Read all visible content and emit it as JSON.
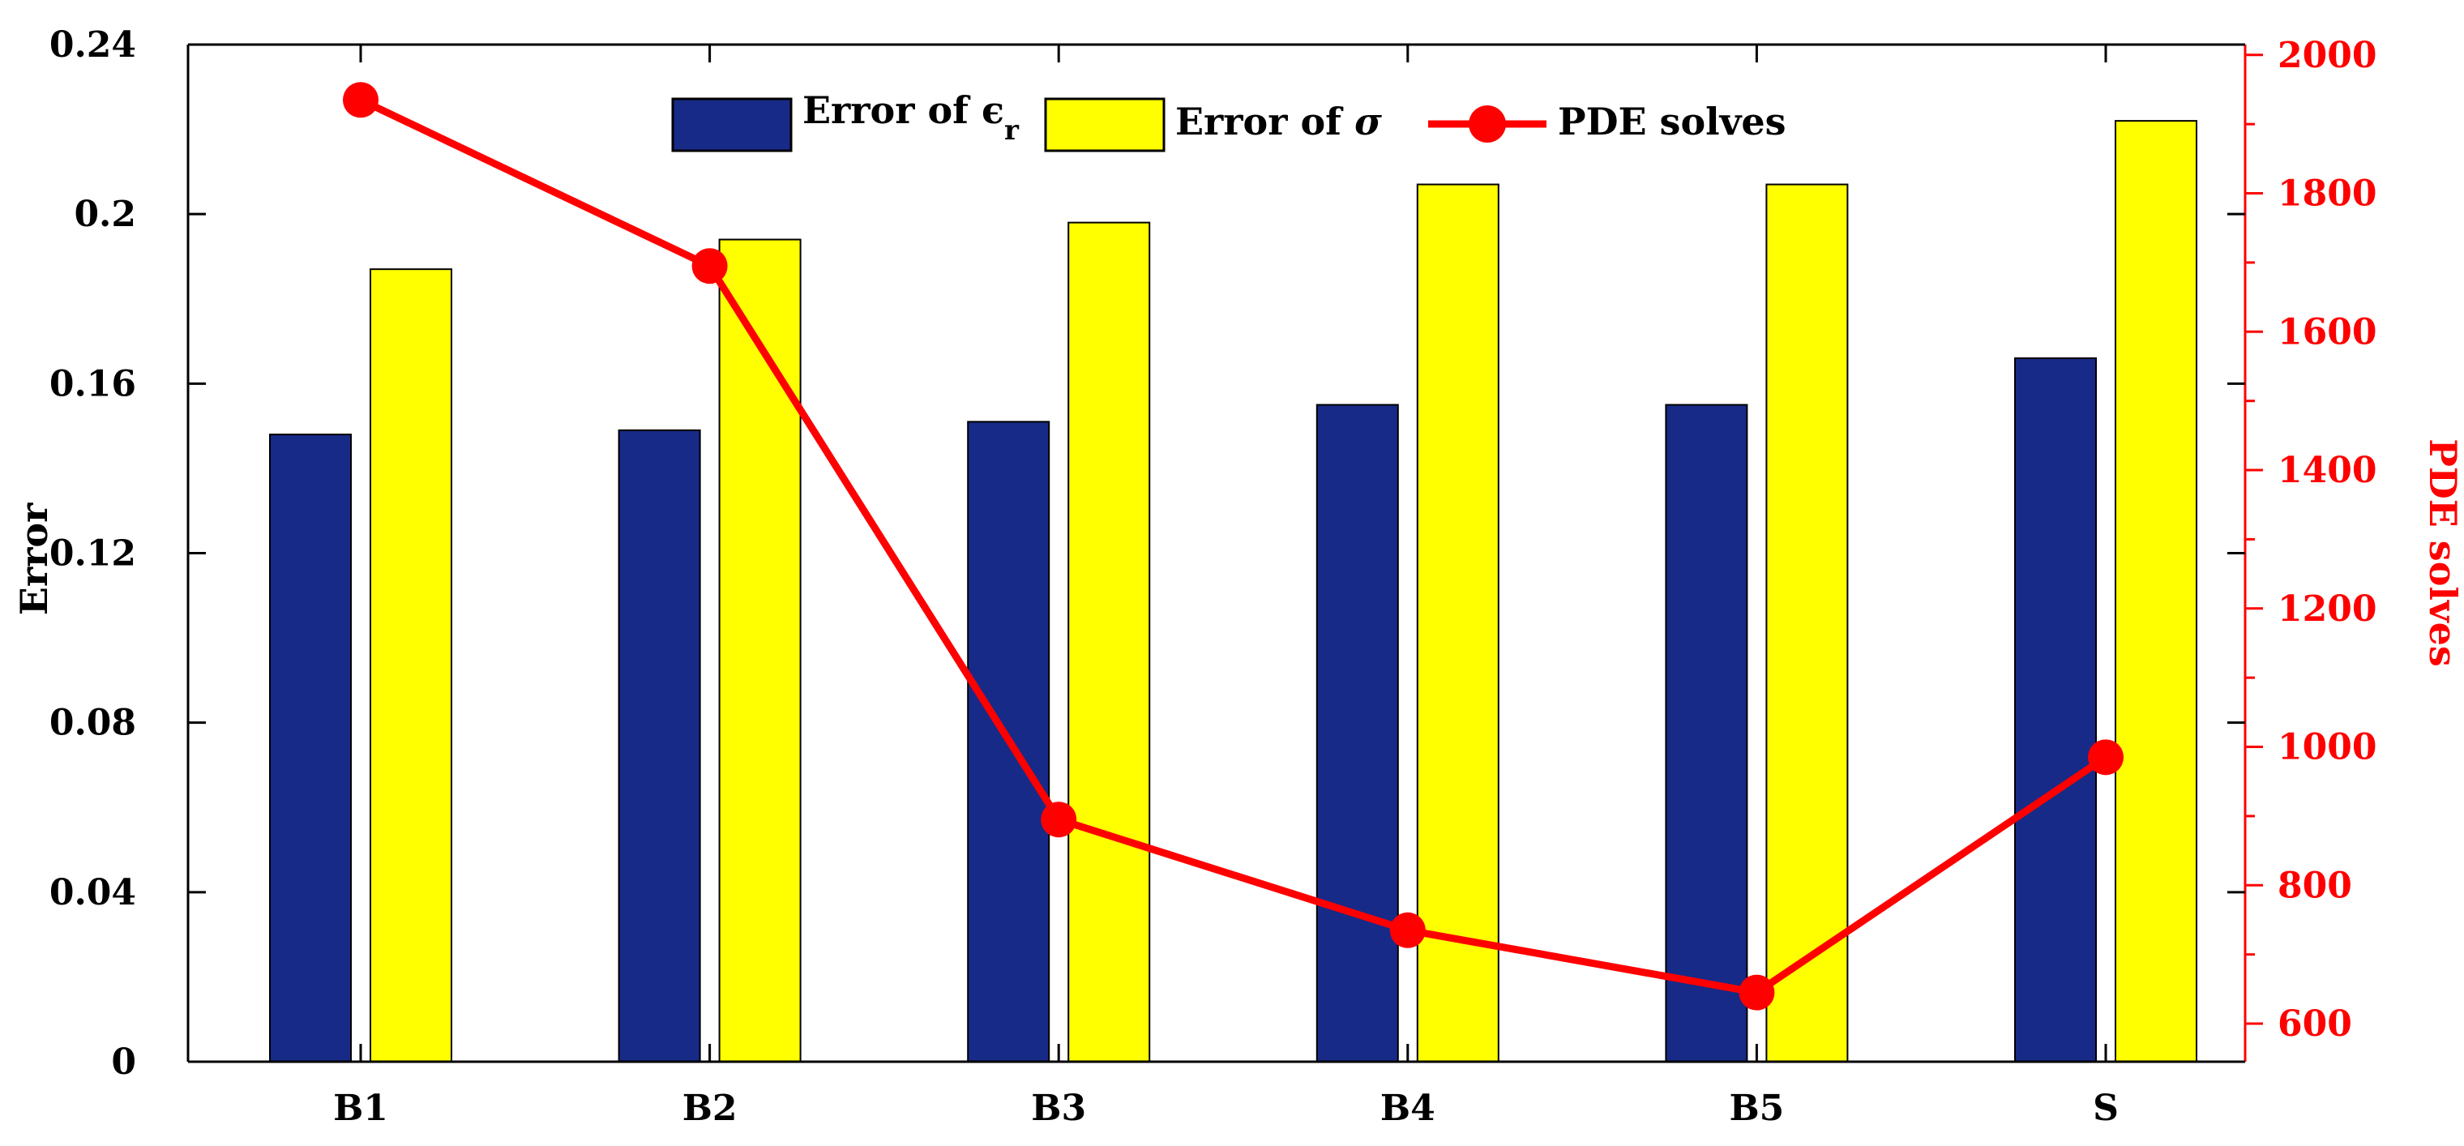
{
  "chart_data": {
    "type": "bar",
    "categories": [
      "B1",
      "B2",
      "B3",
      "B4",
      "B5",
      "S"
    ],
    "series": [
      {
        "name": "Error of ϵr",
        "axis": "left",
        "type": "bar",
        "color": "#172a87",
        "values": [
          0.148,
          0.149,
          0.151,
          0.155,
          0.155,
          0.166
        ]
      },
      {
        "name": "Error of σ",
        "axis": "left",
        "type": "bar",
        "color": "#ffff00",
        "values": [
          0.187,
          0.194,
          0.198,
          0.207,
          0.207,
          0.222
        ]
      },
      {
        "name": "PDE solves",
        "axis": "right",
        "type": "line",
        "color": "#ff0000",
        "values": [
          1935,
          1695,
          895,
          735,
          645,
          985
        ]
      }
    ],
    "legend": {
      "entries": [
        {
          "prefix": "Error of ",
          "symbol": "ϵ",
          "subscript": "r"
        },
        {
          "prefix": "Error of ",
          "symbol": "σ",
          "subscript": ""
        },
        {
          "prefix": "PDE solves",
          "symbol": "",
          "subscript": ""
        }
      ],
      "placement": "top-center"
    },
    "ylabel_left": "Error",
    "ylabel_right": "PDE solves",
    "ylim_left": [
      0,
      0.24
    ],
    "ylim_right": [
      545,
      2015
    ],
    "yticks_left": [
      0,
      0.04,
      0.08,
      0.12,
      0.16,
      0.2,
      0.24
    ],
    "yticks_left_labels": [
      "0",
      "0.04",
      "0.08",
      "0.12",
      "0.16",
      "0.2",
      "0.24"
    ],
    "yticks_right": [
      600,
      800,
      1000,
      1200,
      1400,
      1600,
      1800,
      2000
    ],
    "yticks_right_labels": [
      "600",
      "800",
      "1000",
      "1200",
      "1400",
      "1600",
      "1800",
      "2000"
    ],
    "grid": false,
    "colors": {
      "axis": "#000000",
      "right_axis": "#ff0000",
      "bar_edge": "#000000"
    }
  }
}
